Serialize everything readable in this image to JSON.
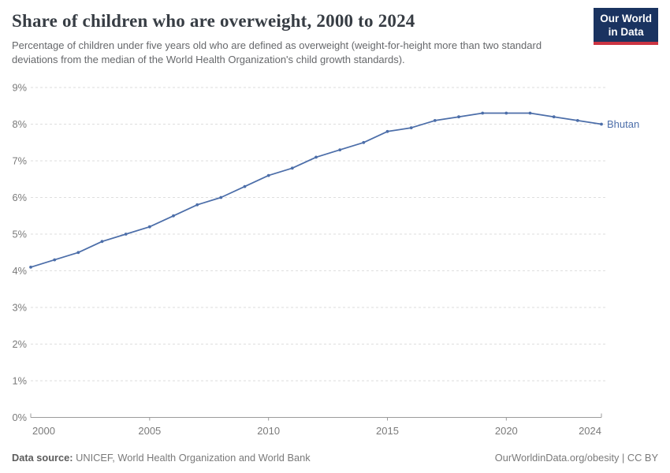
{
  "header": {
    "title": "Share of children who are overweight, 2000 to 2024",
    "subtitle": "Percentage of children under five years old who are defined as overweight (weight-for-height more than two standard deviations from the median of the World Health Organization's child growth standards).",
    "logo": {
      "line1": "Our World",
      "line2": "in Data"
    }
  },
  "footer": {
    "source_label": "Data source:",
    "source_value": "UNICEF, World Health Organization and World Bank",
    "credit": "OurWorldinData.org/obesity | CC BY"
  },
  "chart_data": {
    "type": "line",
    "title": "Share of children who are overweight, 2000 to 2024",
    "x": [
      2000,
      2001,
      2002,
      2003,
      2004,
      2005,
      2006,
      2007,
      2008,
      2009,
      2010,
      2011,
      2012,
      2013,
      2014,
      2015,
      2016,
      2017,
      2018,
      2019,
      2020,
      2021,
      2022,
      2023,
      2024
    ],
    "series": [
      {
        "name": "Bhutan",
        "color": "#4c6ea9",
        "values": [
          4.1,
          4.3,
          4.5,
          4.8,
          5.0,
          5.2,
          5.5,
          5.8,
          6.0,
          6.3,
          6.6,
          6.8,
          7.1,
          7.3,
          7.5,
          7.8,
          7.9,
          8.1,
          8.2,
          8.3,
          8.3,
          8.3,
          8.2,
          8.1,
          8.0
        ]
      }
    ],
    "xlabel": "",
    "ylabel": "",
    "xlim": [
      2000,
      2024
    ],
    "ylim": [
      0,
      9
    ],
    "yticks": [
      {
        "v": 0,
        "label": "0%"
      },
      {
        "v": 1,
        "label": "1%"
      },
      {
        "v": 2,
        "label": "2%"
      },
      {
        "v": 3,
        "label": "3%"
      },
      {
        "v": 4,
        "label": "4%"
      },
      {
        "v": 5,
        "label": "5%"
      },
      {
        "v": 6,
        "label": "6%"
      },
      {
        "v": 7,
        "label": "7%"
      },
      {
        "v": 8,
        "label": "8%"
      },
      {
        "v": 9,
        "label": "9%"
      }
    ],
    "xticks": [
      {
        "v": 2000,
        "label": "2000"
      },
      {
        "v": 2005,
        "label": "2005"
      },
      {
        "v": 2010,
        "label": "2010"
      },
      {
        "v": 2015,
        "label": "2015"
      },
      {
        "v": 2020,
        "label": "2020"
      },
      {
        "v": 2024,
        "label": "2024"
      }
    ],
    "grid": "horizontal-dashed",
    "legend_position": "line-end-label",
    "colors": {
      "line": "#4c6ea9",
      "grid": "#dedede",
      "axis": "#9b9b9b",
      "tick_text": "#7a7a7a"
    }
  }
}
